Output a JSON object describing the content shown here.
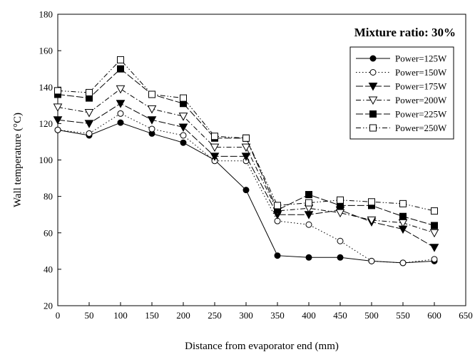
{
  "chart_data": {
    "type": "line",
    "annotation": "Mixture ratio:  30%",
    "xlabel": "Distance from evaporator end (mm)",
    "ylabel": "Wall temperature (°C)",
    "xlim": [
      0,
      650
    ],
    "ylim": [
      20,
      180
    ],
    "xticks": [
      0,
      50,
      100,
      150,
      200,
      250,
      300,
      350,
      400,
      450,
      500,
      550,
      600,
      650
    ],
    "yticks": [
      20,
      40,
      60,
      80,
      100,
      120,
      140,
      160,
      180
    ],
    "grid": false,
    "legend_position": "top-right",
    "x": [
      0,
      50,
      100,
      150,
      200,
      250,
      300,
      350,
      400,
      450,
      500,
      550,
      600
    ],
    "series": [
      {
        "name": "Power=125W",
        "marker": "circle",
        "filled": true,
        "dash": "solid",
        "values": [
          116.5,
          113.5,
          120.5,
          114.5,
          109.5,
          100,
          83.5,
          47.5,
          46.5,
          46.5,
          44.5,
          43.5,
          44.5
        ]
      },
      {
        "name": "Power=150W",
        "marker": "circle",
        "filled": false,
        "dash": "dot",
        "values": [
          116.5,
          114.5,
          125.5,
          117,
          113.5,
          99.5,
          99.5,
          66.5,
          64.5,
          55.5,
          44.5,
          43.5,
          45.5
        ]
      },
      {
        "name": "Power=175W",
        "marker": "triangle-down",
        "filled": true,
        "dash": "longdash",
        "values": [
          122,
          120,
          131,
          122,
          118,
          102,
          102,
          70,
          70,
          72.5,
          66,
          62,
          52
        ]
      },
      {
        "name": "Power=200W",
        "marker": "triangle-down",
        "filled": false,
        "dash": "dashdot",
        "values": [
          129,
          126,
          139,
          128,
          124,
          107,
          107,
          72,
          73.5,
          71,
          67,
          65.5,
          60
        ]
      },
      {
        "name": "Power=225W",
        "marker": "square",
        "filled": true,
        "dash": "longdash",
        "values": [
          136,
          134,
          150,
          136,
          131,
          112,
          112,
          72.5,
          81,
          75,
          75,
          69,
          64
        ]
      },
      {
        "name": "Power=250W",
        "marker": "square",
        "filled": false,
        "dash": "dashdotdot",
        "values": [
          138,
          137,
          155,
          136,
          134,
          113,
          112,
          75,
          76.5,
          78,
          77,
          76,
          72
        ]
      }
    ]
  }
}
